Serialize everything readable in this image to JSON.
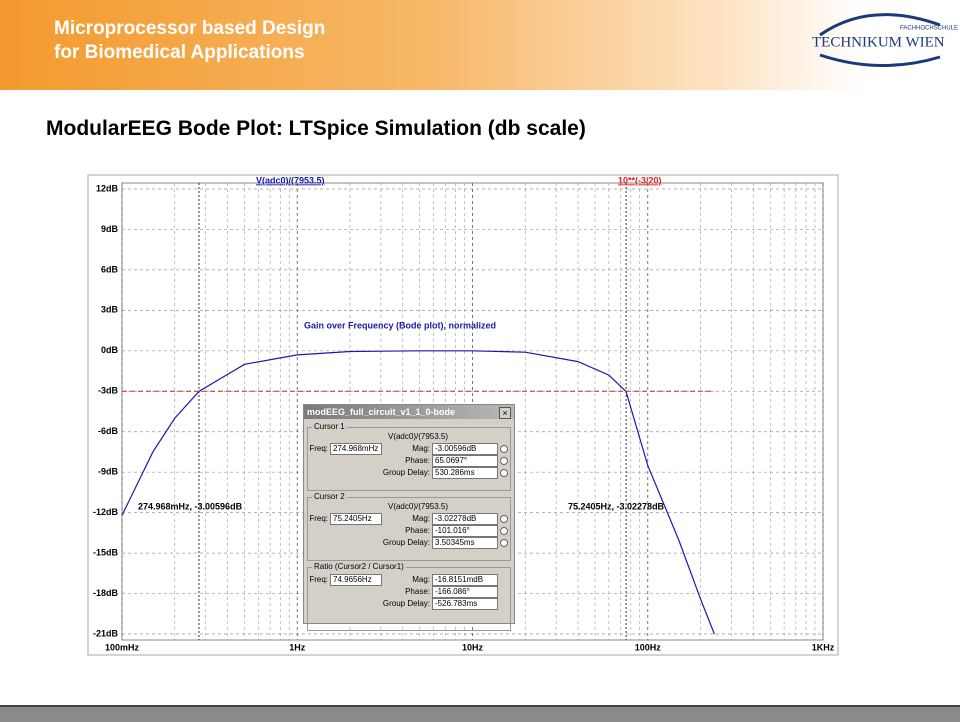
{
  "slide": {
    "header_line1": "Microprocessor based Design",
    "header_line2": "for Biomedical Applications",
    "logo_small": "FACHHOCHSCHULE",
    "logo": "TECHNIKUM WIEN",
    "title": "ModularEEG Bode Plot: LTSpice Simulation (db scale)"
  },
  "chart_data": {
    "type": "line",
    "xscale": "log",
    "grid": true,
    "x": [
      0.1,
      0.15,
      0.2,
      0.274968,
      0.5,
      1,
      2,
      5,
      10,
      20,
      40,
      60,
      75.2405,
      100,
      150,
      200,
      240
    ],
    "series": [
      {
        "name": "V(adc0)/(7953.5)",
        "color": "#1a1aa8",
        "values": [
          -12.2,
          -7.5,
          -5,
          -3.00596,
          -1,
          -0.3,
          -0.05,
          0,
          0,
          -0.1,
          -0.8,
          -1.8,
          -3.02278,
          -8.5,
          -14,
          -18.4,
          -21
        ]
      },
      {
        "name": "10**(-3/20)",
        "color": "#e02020",
        "values": [
          -3,
          -3,
          -3,
          -3,
          -3,
          -3,
          -3,
          -3,
          -3,
          -3,
          -3,
          -3,
          -3,
          -3,
          -3,
          -3,
          -3
        ]
      }
    ],
    "cursors": [
      0.274968,
      75.2405
    ],
    "xlim": [
      0.1,
      1000
    ],
    "xticks": [
      {
        "value": 0.1,
        "label": "100mHz"
      },
      {
        "value": 1,
        "label": "1Hz"
      },
      {
        "value": 10,
        "label": "10Hz"
      },
      {
        "value": 100,
        "label": "100Hz"
      },
      {
        "value": 1000,
        "label": "1KHz"
      }
    ],
    "ylim": [
      -21,
      12
    ],
    "yticks": [
      {
        "value": 12,
        "label": "12dB"
      },
      {
        "value": 9,
        "label": "9dB"
      },
      {
        "value": 6,
        "label": "6dB"
      },
      {
        "value": 3,
        "label": "3dB"
      },
      {
        "value": 0,
        "label": "0dB"
      },
      {
        "value": -3,
        "label": "-3dB"
      },
      {
        "value": -6,
        "label": "-6dB"
      },
      {
        "value": -9,
        "label": "-9dB"
      },
      {
        "value": -12,
        "label": "-12dB"
      },
      {
        "value": -15,
        "label": "-15dB"
      },
      {
        "value": -18,
        "label": "-18dB"
      },
      {
        "value": -21,
        "label": "-21dB"
      }
    ],
    "annotations": [
      "Gain over Frequency (Bode plot), normalized",
      "274.968mHz, -3.00596dB",
      "75.2405Hz, -3.02278dB"
    ]
  },
  "dialog": {
    "title": "modEEG_full_circuit_v1_1_0-bode",
    "groups": [
      {
        "label": "Cursor 1",
        "trace": "V(adc0)/(7953.5)",
        "freq_label": "Freq:",
        "freq": "274.968mHz",
        "fields": [
          {
            "label": "Mag:",
            "value": "-3.00596dB"
          },
          {
            "label": "Phase:",
            "value": "65.0697°"
          },
          {
            "label": "Group Delay:",
            "value": "530.286ms"
          }
        ]
      },
      {
        "label": "Cursor 2",
        "trace": "V(adc0)/(7953.5)",
        "freq_label": "Freq:",
        "freq": "75.2405Hz",
        "fields": [
          {
            "label": "Mag:",
            "value": "-3.02278dB"
          },
          {
            "label": "Phase:",
            "value": "-101.016°"
          },
          {
            "label": "Group Delay:",
            "value": "3.50345ms"
          }
        ]
      },
      {
        "label": "Ratio (Cursor2 / Cursor1)",
        "freq_label": "Freq:",
        "freq": "74.9656Hz",
        "fields": [
          {
            "label": "Mag:",
            "value": "-16.8151mdB"
          },
          {
            "label": "Phase:",
            "value": "-166.086°"
          },
          {
            "label": "Group Delay:",
            "value": "-526.783ms"
          }
        ]
      }
    ]
  }
}
